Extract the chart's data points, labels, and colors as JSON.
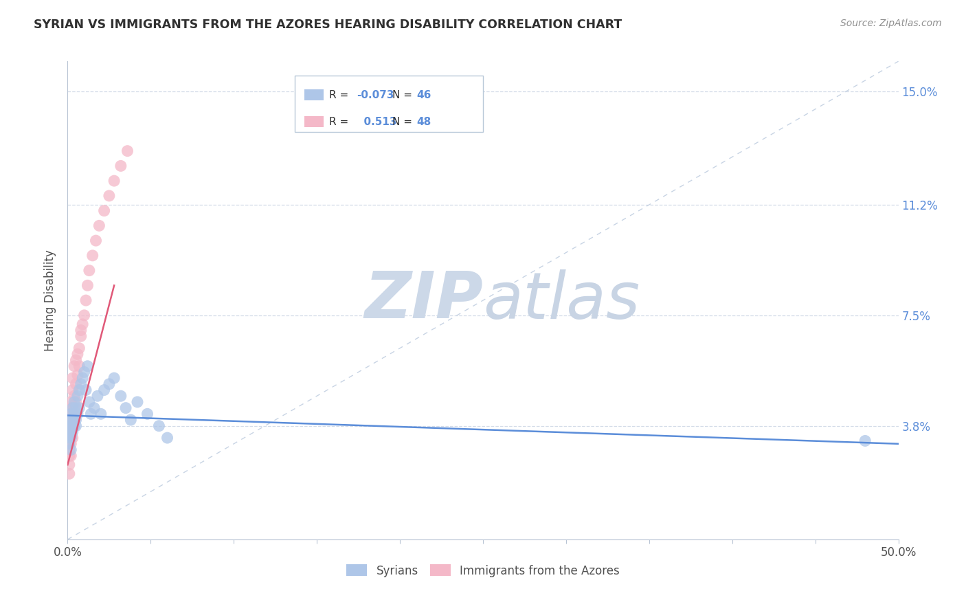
{
  "title": "SYRIAN VS IMMIGRANTS FROM THE AZORES HEARING DISABILITY CORRELATION CHART",
  "source": "Source: ZipAtlas.com",
  "xlabel_syrians": "Syrians",
  "xlabel_azores": "Immigrants from the Azores",
  "ylabel": "Hearing Disability",
  "xmin": 0.0,
  "xmax": 0.5,
  "ymin": 0.0,
  "ymax": 0.16,
  "yticks": [
    0.038,
    0.075,
    0.112,
    0.15
  ],
  "ytick_labels": [
    "3.8%",
    "7.5%",
    "11.2%",
    "15.0%"
  ],
  "xtick_labels": [
    "0.0%",
    "50.0%"
  ],
  "r_syrians": -0.073,
  "n_syrians": 46,
  "r_azores": 0.513,
  "n_azores": 48,
  "color_syrians": "#aec6e8",
  "color_azores": "#f4b8c8",
  "trendline_syrians": "#5b8dd9",
  "trendline_azores": "#e05878",
  "grid_color": "#d4dce8",
  "title_color": "#303030",
  "source_color": "#909090",
  "axis_label_color": "#505050",
  "tick_label_color_y": "#5b8dd9",
  "tick_label_color_x": "#505050",
  "legend_r_color": "#303030",
  "legend_n_color": "#5b8dd9",
  "watermark_zip_color": "#ccd8e8",
  "watermark_atlas_color": "#c8d4e4",
  "bg_color": "#ffffff",
  "plot_bg_color": "#ffffff",
  "syrians_x": [
    0.001,
    0.001,
    0.001,
    0.001,
    0.001,
    0.001,
    0.002,
    0.002,
    0.002,
    0.002,
    0.002,
    0.003,
    0.003,
    0.003,
    0.003,
    0.004,
    0.004,
    0.004,
    0.005,
    0.005,
    0.005,
    0.006,
    0.006,
    0.007,
    0.007,
    0.008,
    0.009,
    0.01,
    0.011,
    0.012,
    0.013,
    0.014,
    0.016,
    0.018,
    0.02,
    0.022,
    0.025,
    0.028,
    0.032,
    0.035,
    0.038,
    0.042,
    0.048,
    0.055,
    0.06,
    0.48
  ],
  "syrians_y": [
    0.038,
    0.036,
    0.034,
    0.04,
    0.035,
    0.032,
    0.042,
    0.038,
    0.036,
    0.034,
    0.03,
    0.04,
    0.038,
    0.036,
    0.044,
    0.042,
    0.038,
    0.046,
    0.04,
    0.044,
    0.038,
    0.048,
    0.042,
    0.05,
    0.044,
    0.052,
    0.054,
    0.056,
    0.05,
    0.058,
    0.046,
    0.042,
    0.044,
    0.048,
    0.042,
    0.05,
    0.052,
    0.054,
    0.048,
    0.044,
    0.04,
    0.046,
    0.042,
    0.038,
    0.034,
    0.033
  ],
  "azores_x": [
    0.001,
    0.001,
    0.001,
    0.001,
    0.001,
    0.001,
    0.001,
    0.001,
    0.001,
    0.001,
    0.002,
    0.002,
    0.002,
    0.002,
    0.002,
    0.002,
    0.002,
    0.003,
    0.003,
    0.003,
    0.003,
    0.003,
    0.004,
    0.004,
    0.004,
    0.004,
    0.005,
    0.005,
    0.005,
    0.006,
    0.006,
    0.007,
    0.007,
    0.008,
    0.008,
    0.009,
    0.01,
    0.011,
    0.012,
    0.013,
    0.015,
    0.017,
    0.019,
    0.022,
    0.025,
    0.028,
    0.032,
    0.036
  ],
  "azores_y": [
    0.038,
    0.04,
    0.035,
    0.03,
    0.028,
    0.032,
    0.036,
    0.042,
    0.022,
    0.025,
    0.036,
    0.04,
    0.044,
    0.038,
    0.032,
    0.028,
    0.046,
    0.042,
    0.038,
    0.05,
    0.034,
    0.054,
    0.058,
    0.044,
    0.04,
    0.048,
    0.06,
    0.052,
    0.046,
    0.062,
    0.055,
    0.064,
    0.058,
    0.07,
    0.068,
    0.072,
    0.075,
    0.08,
    0.085,
    0.09,
    0.095,
    0.1,
    0.105,
    0.11,
    0.115,
    0.12,
    0.125,
    0.13
  ]
}
